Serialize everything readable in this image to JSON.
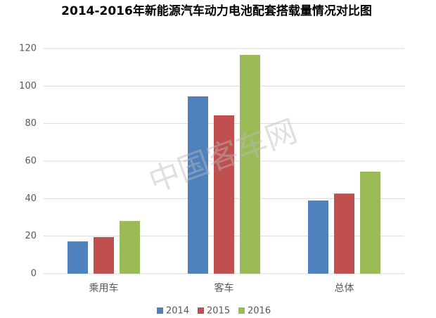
{
  "chart_data": {
    "type": "bar",
    "title": "2014-2016年新能源汽车动力电池配套搭载量情况对比图",
    "watermark": "中国客车网",
    "categories": [
      "乘用车",
      "客车",
      "总体"
    ],
    "series": [
      {
        "name": "2014",
        "color": "#4f81bd",
        "values": [
          17.2,
          94.5,
          39
        ]
      },
      {
        "name": "2015",
        "color": "#c0504d",
        "values": [
          19.5,
          84.4,
          42.7
        ]
      },
      {
        "name": "2016",
        "color": "#9bbb59",
        "values": [
          28.1,
          116.6,
          54.4
        ]
      }
    ],
    "ylim": [
      0,
      120
    ],
    "yticks": [
      0,
      20,
      40,
      60,
      80,
      100,
      120
    ],
    "grid": true,
    "legend": "bottom"
  }
}
